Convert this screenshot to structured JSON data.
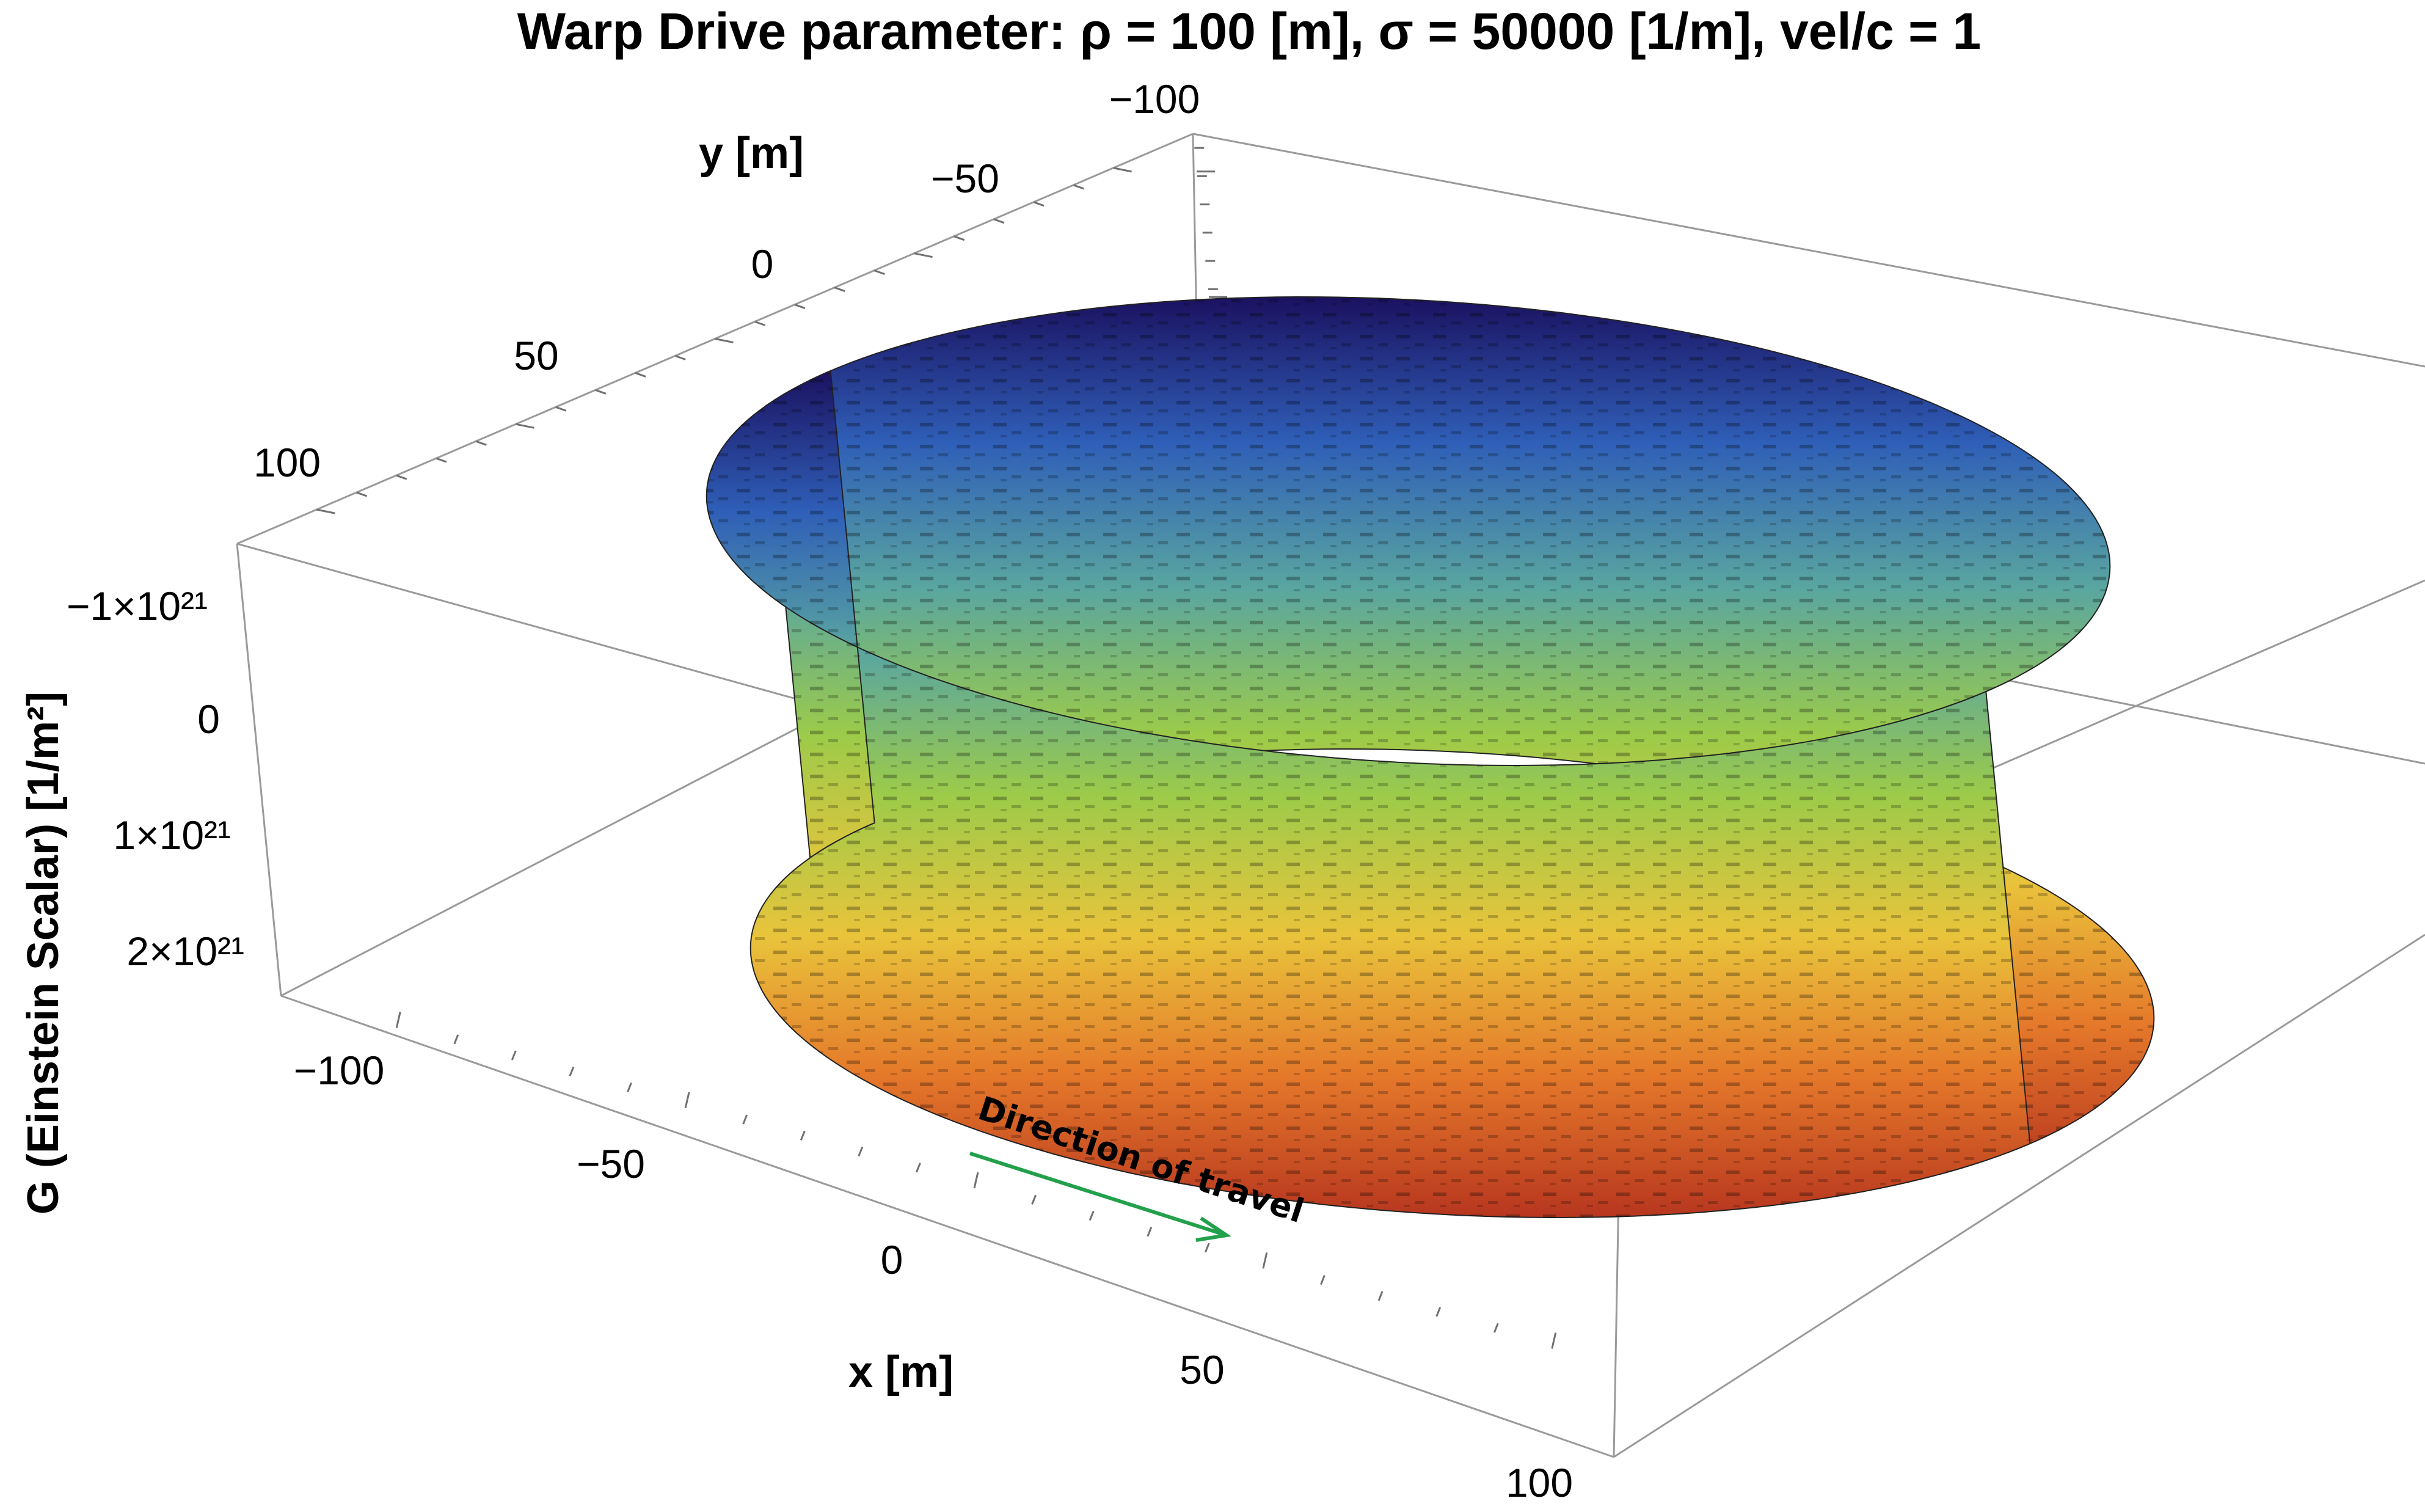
{
  "chart_data": {
    "type": "surface3d",
    "title": "Warp Drive parameter: ρ = 100 [m], σ = 50000 [1/m], vel/c = 1",
    "xlabel": "x [m]",
    "ylabel": "y [m]",
    "zlabel": "G (Einstein Scalar) [1/m²]",
    "xlim": [
      -120,
      120
    ],
    "ylim": [
      -120,
      120
    ],
    "x_ticks": [
      "−100",
      "−50",
      "0",
      "50",
      "100"
    ],
    "y_ticks": [
      "−100",
      "−50",
      "0",
      "50",
      "100"
    ],
    "z_ticks": [
      "−1×10²¹",
      "0",
      "1×10²¹",
      "2×10²¹"
    ],
    "z_tick_values": [
      -1e+21,
      0,
      1e+21,
      2e+21
    ],
    "surface": {
      "shape": "thin ring at radius ρ",
      "radius": 100,
      "z_range": [
        -1.3e+21,
        2.3e+21
      ],
      "colormap": "rainbow",
      "colors": [
        "#1b1160",
        "#2f5fb8",
        "#5aa6a0",
        "#9ccb4a",
        "#e9c43b",
        "#e5782a",
        "#b7361f"
      ]
    },
    "annotation": {
      "text": "Direction of travel",
      "arrow_color": "#22a04b"
    },
    "grid": false,
    "legend": "none"
  }
}
